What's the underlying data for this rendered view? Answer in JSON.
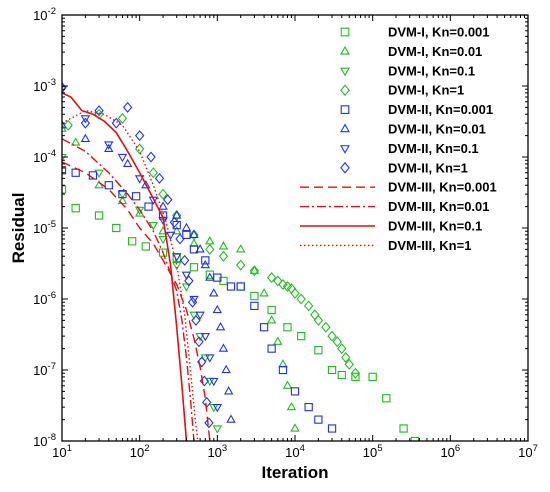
{
  "chart_data": {
    "type": "scatter",
    "xlabel": "Iteration",
    "ylabel": "Residual",
    "x_scale": "log",
    "y_scale": "log",
    "xlim": [
      10,
      10000000
    ],
    "ylim": [
      1e-08,
      0.01
    ],
    "x_ticks": [
      {
        "base": "10",
        "exp": "1"
      },
      {
        "base": "10",
        "exp": "2"
      },
      {
        "base": "10",
        "exp": "3"
      },
      {
        "base": "10",
        "exp": "4"
      },
      {
        "base": "10",
        "exp": "5"
      },
      {
        "base": "10",
        "exp": "6"
      },
      {
        "base": "10",
        "exp": "7"
      }
    ],
    "y_ticks": [
      {
        "base": "10",
        "exp": "-2"
      },
      {
        "base": "10",
        "exp": "-3"
      },
      {
        "base": "10",
        "exp": "-4"
      },
      {
        "base": "10",
        "exp": "-5"
      },
      {
        "base": "10",
        "exp": "-6"
      },
      {
        "base": "10",
        "exp": "-7"
      },
      {
        "base": "10",
        "exp": "-8"
      }
    ],
    "legend_position": "top-right",
    "grid": false,
    "colors": {
      "green": "#22bb22",
      "blue": "#2233dd",
      "red": "#dd1111"
    },
    "series": [
      {
        "name": "DVM-I, Kn=0.001",
        "marker": "square",
        "color": "#22bb22",
        "points": [
          [
            10,
            3.5e-05
          ],
          [
            15,
            1.9e-05
          ],
          [
            30,
            1.5e-05
          ],
          [
            50,
            1e-05
          ],
          [
            80,
            6.5e-06
          ],
          [
            120,
            5.5e-06
          ],
          [
            200,
            4.5e-06
          ],
          [
            300,
            3.8e-06
          ],
          [
            500,
            2.8e-06
          ],
          [
            800,
            2.2e-06
          ],
          [
            1200,
            1.8e-06
          ],
          [
            2000,
            1.5e-06
          ],
          [
            3000,
            1.1e-06
          ],
          [
            5000,
            7e-07
          ],
          [
            8000,
            4e-07
          ],
          [
            12000,
            3e-07
          ],
          [
            20000,
            1.9e-07
          ],
          [
            30000,
            1e-07
          ],
          [
            40000,
            8.5e-08
          ],
          [
            60000,
            8e-08
          ],
          [
            100000,
            8e-08
          ],
          [
            150000,
            4e-08
          ],
          [
            250000,
            1.5e-08
          ],
          [
            350000,
            1e-08
          ]
        ]
      },
      {
        "name": "DVM-I, Kn=0.01",
        "marker": "triangle-up",
        "color": "#22bb22",
        "points": [
          [
            10,
            0.00025
          ],
          [
            15,
            0.00016
          ],
          [
            30,
            4e-05
          ],
          [
            60,
            2.4e-05
          ],
          [
            100,
            1.6e-05
          ],
          [
            200,
            9e-06
          ],
          [
            300,
            9e-06
          ],
          [
            500,
            6e-06
          ],
          [
            800,
            6.5e-06
          ],
          [
            1200,
            5.5e-06
          ],
          [
            2000,
            5e-06
          ],
          [
            3000,
            2.5e-06
          ],
          [
            4000,
            1.2e-06
          ],
          [
            5000,
            5e-07
          ],
          [
            6000,
            2.5e-07
          ],
          [
            7000,
            1.2e-07
          ],
          [
            8000,
            6e-08
          ],
          [
            9000,
            3e-08
          ],
          [
            10000,
            1.5e-08
          ]
        ]
      },
      {
        "name": "DVM-I, Kn=0.1",
        "marker": "triangle-down",
        "color": "#22bb22",
        "points": [
          [
            10,
            0.0001
          ],
          [
            30,
            6e-05
          ],
          [
            60,
            3e-05
          ],
          [
            100,
            1.8e-05
          ],
          [
            150,
            1.1e-05
          ],
          [
            200,
            7e-06
          ],
          [
            300,
            3e-06
          ],
          [
            400,
            1.5e-06
          ],
          [
            500,
            6e-07
          ],
          [
            600,
            3e-07
          ],
          [
            700,
            1.5e-07
          ],
          [
            800,
            7e-08
          ],
          [
            900,
            3e-08
          ],
          [
            1000,
            1.5e-08
          ]
        ]
      },
      {
        "name": "DVM-I, Kn=1",
        "marker": "diamond",
        "color": "#22bb22",
        "points": [
          [
            12,
            0.00028
          ],
          [
            30,
            0.0004
          ],
          [
            60,
            0.00035
          ],
          [
            100,
            0.00013
          ],
          [
            150,
            6e-05
          ],
          [
            200,
            3e-05
          ],
          [
            300,
            1.5e-05
          ],
          [
            500,
            8e-06
          ],
          [
            800,
            5e-06
          ],
          [
            1200,
            4e-06
          ],
          [
            2000,
            3e-06
          ],
          [
            3000,
            2.5e-06
          ],
          [
            5000,
            2e-06
          ],
          [
            6000,
            1.8e-06
          ],
          [
            7000,
            1.6e-06
          ],
          [
            8000,
            1.5e-06
          ],
          [
            9000,
            1.4e-06
          ],
          [
            10000,
            1.2e-06
          ],
          [
            12000,
            1e-06
          ],
          [
            15000,
            8e-07
          ],
          [
            18000,
            6e-07
          ],
          [
            20000,
            5e-07
          ],
          [
            25000,
            4e-07
          ],
          [
            30000,
            3e-07
          ],
          [
            35000,
            2.5e-07
          ],
          [
            40000,
            2e-07
          ],
          [
            45000,
            1.5e-07
          ],
          [
            50000,
            1.2e-07
          ],
          [
            60000,
            9e-08
          ]
        ]
      },
      {
        "name": "DVM-II, Kn=0.001",
        "marker": "square",
        "color": "#2233dd",
        "points": [
          [
            10,
            6.5e-05
          ],
          [
            15,
            6e-05
          ],
          [
            25,
            5.5e-05
          ],
          [
            40,
            4e-05
          ],
          [
            60,
            3e-05
          ],
          [
            90,
            2.8e-05
          ],
          [
            130,
            2e-05
          ],
          [
            200,
            1.5e-05
          ],
          [
            300,
            1.1e-05
          ],
          [
            400,
            8e-06
          ],
          [
            500,
            5e-06
          ],
          [
            700,
            3.5e-06
          ],
          [
            1000,
            2e-06
          ],
          [
            1500,
            1.5e-06
          ],
          [
            2000,
            1.5e-06
          ],
          [
            3000,
            8e-07
          ],
          [
            4000,
            4e-07
          ],
          [
            5000,
            2e-07
          ],
          [
            7000,
            1e-07
          ],
          [
            10000,
            5e-08
          ],
          [
            15000,
            3e-08
          ],
          [
            20000,
            2e-08
          ],
          [
            30000,
            1.5e-08
          ]
        ]
      },
      {
        "name": "DVM-II, Kn=0.01",
        "marker": "triangle-up",
        "color": "#2233dd",
        "points": [
          [
            10,
            0.00028
          ],
          [
            20,
            0.00018
          ],
          [
            40,
            0.00013
          ],
          [
            70,
            8e-05
          ],
          [
            120,
            4e-05
          ],
          [
            200,
            2e-05
          ],
          [
            300,
            1.5e-05
          ],
          [
            400,
            1e-05
          ],
          [
            500,
            8e-06
          ],
          [
            600,
            5e-06
          ],
          [
            700,
            3e-06
          ],
          [
            800,
            2e-06
          ],
          [
            900,
            1.2e-06
          ],
          [
            1000,
            7e-07
          ],
          [
            1100,
            4e-07
          ],
          [
            1200,
            2e-07
          ],
          [
            1300,
            1e-07
          ],
          [
            1400,
            5e-08
          ],
          [
            1500,
            2e-08
          ]
        ]
      },
      {
        "name": "DVM-II, Kn=0.1",
        "marker": "triangle-down",
        "color": "#2233dd",
        "points": [
          [
            10,
            0.0009
          ],
          [
            20,
            0.00035
          ],
          [
            40,
            0.00015
          ],
          [
            60,
            0.0001
          ],
          [
            100,
            5e-05
          ],
          [
            150,
            2.5e-05
          ],
          [
            200,
            1.3e-05
          ],
          [
            250,
            8e-06
          ],
          [
            300,
            4e-06
          ],
          [
            400,
            2.2e-06
          ],
          [
            500,
            1e-06
          ],
          [
            600,
            6e-07
          ],
          [
            700,
            3e-07
          ],
          [
            800,
            1.5e-07
          ],
          [
            900,
            7e-08
          ],
          [
            1000,
            3e-08
          ]
        ]
      },
      {
        "name": "DVM-II, Kn=1",
        "marker": "diamond",
        "color": "#2233dd",
        "points": [
          [
            10,
            0.00095
          ],
          [
            20,
            0.0003
          ],
          [
            30,
            0.00045
          ],
          [
            50,
            0.0003
          ],
          [
            70,
            0.0005
          ],
          [
            100,
            0.0002
          ],
          [
            140,
            0.0001
          ],
          [
            180,
            5e-05
          ],
          [
            230,
            2.5e-05
          ],
          [
            280,
            1.2e-05
          ],
          [
            330,
            7e-06
          ],
          [
            380,
            3.5e-06
          ],
          [
            430,
            1.8e-06
          ],
          [
            480,
            9e-07
          ],
          [
            530,
            5e-07
          ],
          [
            580,
            2.5e-07
          ],
          [
            630,
            1.3e-07
          ],
          [
            680,
            7e-08
          ],
          [
            730,
            3.5e-08
          ],
          [
            780,
            1.8e-08
          ]
        ]
      },
      {
        "name": "DVM-III, Kn=0.001",
        "line": "dashed",
        "color": "#dd1111",
        "points": [
          [
            10,
            8.5e-05
          ],
          [
            20,
            6e-05
          ],
          [
            40,
            3.5e-05
          ],
          [
            70,
            1.8e-05
          ],
          [
            100,
            1e-05
          ],
          [
            150,
            6e-06
          ],
          [
            200,
            3.5e-06
          ],
          [
            300,
            1.6e-06
          ],
          [
            400,
            7e-07
          ],
          [
            500,
            2.8e-07
          ],
          [
            600,
            1.1e-07
          ],
          [
            700,
            4e-08
          ],
          [
            800,
            1e-08
          ]
        ]
      },
      {
        "name": "DVM-III, Kn=0.01",
        "line": "dashdot",
        "color": "#dd1111",
        "points": [
          [
            10,
            0.00018
          ],
          [
            20,
            0.00012
          ],
          [
            40,
            6e-05
          ],
          [
            70,
            3e-05
          ],
          [
            100,
            1.8e-05
          ],
          [
            150,
            9e-06
          ],
          [
            200,
            4.5e-06
          ],
          [
            300,
            1.3e-06
          ],
          [
            350,
            5e-07
          ],
          [
            400,
            1.5e-07
          ],
          [
            450,
            4e-08
          ],
          [
            500,
            1e-08
          ]
        ]
      },
      {
        "name": "DVM-III, Kn=0.1",
        "line": "solid",
        "color": "#dd1111",
        "points": [
          [
            10,
            0.0008
          ],
          [
            13,
            0.0007
          ],
          [
            18,
            0.00045
          ],
          [
            25,
            0.0004
          ],
          [
            35,
            0.00032
          ],
          [
            50,
            0.00022
          ],
          [
            70,
            0.00012
          ],
          [
            100,
            6e-05
          ],
          [
            140,
            3e-05
          ],
          [
            200,
            1.4e-05
          ],
          [
            250,
            3e-06
          ],
          [
            300,
            4e-07
          ],
          [
            350,
            6e-08
          ],
          [
            400,
            1e-08
          ]
        ]
      },
      {
        "name": "DVM-III, Kn=1",
        "line": "dotted",
        "color": "#dd1111",
        "points": [
          [
            10,
            0.0003
          ],
          [
            20,
            0.00045
          ],
          [
            35,
            0.0004
          ],
          [
            60,
            0.00028
          ],
          [
            100,
            0.00012
          ],
          [
            150,
            4e-05
          ],
          [
            220,
            1.2e-05
          ],
          [
            300,
            3e-06
          ],
          [
            380,
            6e-07
          ],
          [
            450,
            1e-07
          ],
          [
            520,
            2e-08
          ],
          [
            560,
            1e-08
          ]
        ]
      }
    ]
  }
}
